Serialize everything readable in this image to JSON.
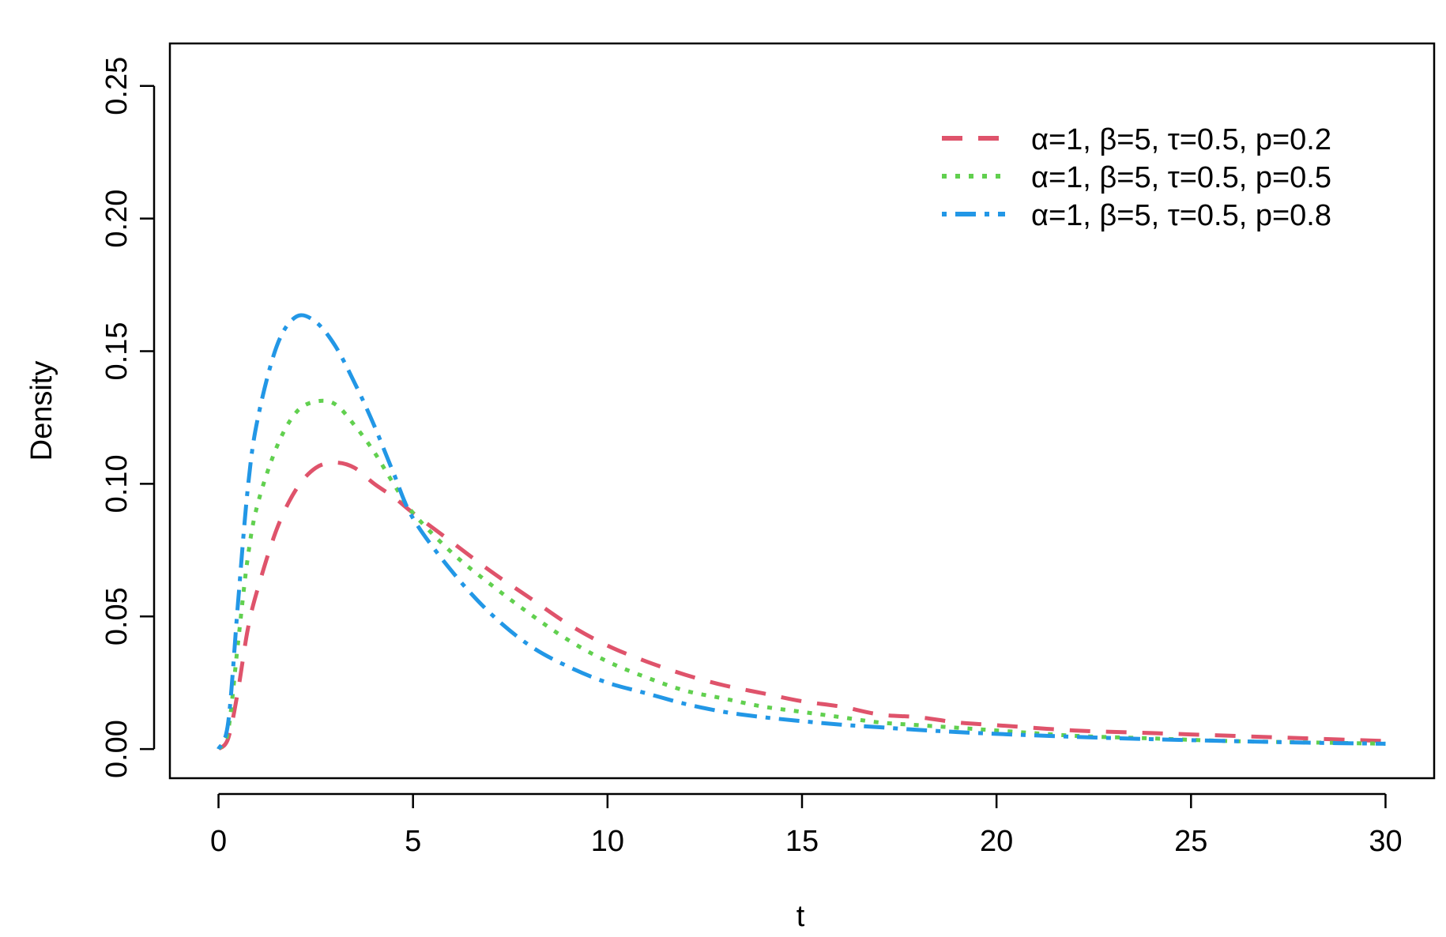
{
  "chart_data": {
    "type": "line",
    "title": "",
    "xlabel": "t",
    "ylabel": "Density",
    "xlim": [
      -1.25,
      31.25
    ],
    "ylim": [
      -0.011,
      0.266
    ],
    "xticks": [
      0,
      5,
      10,
      15,
      20,
      25,
      30
    ],
    "xtick_labels": [
      "0",
      "5",
      "10",
      "15",
      "20",
      "25",
      "30"
    ],
    "yticks": [
      0.0,
      0.05,
      0.1,
      0.15,
      0.2,
      0.25
    ],
    "ytick_labels": [
      "0.00",
      "0.05",
      "0.10",
      "0.15",
      "0.20",
      "0.25"
    ],
    "grid": false,
    "legend_position": "top-right",
    "x": [
      0,
      0.25,
      0.5,
      0.75,
      1,
      1.5,
      2,
      2.5,
      3,
      3.5,
      4,
      4.5,
      5,
      6,
      7,
      8,
      9,
      10,
      11,
      12,
      13,
      14,
      15,
      16,
      17,
      18,
      19,
      20,
      22,
      24,
      26,
      28,
      30
    ],
    "series": [
      {
        "name": "α=1, β=5, τ=0.5, p=0.2",
        "color": "#DF536B",
        "dash": "dashed",
        "values": [
          0,
          0.004,
          0.022,
          0.045,
          0.06,
          0.083,
          0.098,
          0.106,
          0.108,
          0.106,
          0.1,
          0.095,
          0.089,
          0.078,
          0.067,
          0.057,
          0.047,
          0.039,
          0.033,
          0.028,
          0.024,
          0.021,
          0.018,
          0.016,
          0.013,
          0.012,
          0.01,
          0.009,
          0.007,
          0.006,
          0.005,
          0.004,
          0.003
        ]
      },
      {
        "name": "α=1, β=5, τ=0.5, p=0.5",
        "color": "#61D04F",
        "dash": "dotted",
        "values": [
          0,
          0.007,
          0.04,
          0.072,
          0.092,
          0.114,
          0.127,
          0.131,
          0.13,
          0.122,
          0.112,
          0.1,
          0.089,
          0.074,
          0.062,
          0.051,
          0.041,
          0.033,
          0.027,
          0.022,
          0.019,
          0.016,
          0.014,
          0.012,
          0.01,
          0.009,
          0.008,
          0.007,
          0.005,
          0.004,
          0.003,
          0.0025,
          0.002
        ]
      },
      {
        "name": "α=1, β=5, τ=0.5, p=0.8",
        "color": "#2297E6",
        "dash": "dotdash",
        "values": [
          0,
          0.01,
          0.055,
          0.098,
          0.124,
          0.152,
          0.163,
          0.161,
          0.152,
          0.138,
          0.122,
          0.104,
          0.087,
          0.067,
          0.051,
          0.039,
          0.031,
          0.025,
          0.021,
          0.017,
          0.014,
          0.012,
          0.0105,
          0.0092,
          0.0082,
          0.0072,
          0.0064,
          0.0057,
          0.0046,
          0.0037,
          0.003,
          0.0024,
          0.002
        ]
      }
    ]
  }
}
